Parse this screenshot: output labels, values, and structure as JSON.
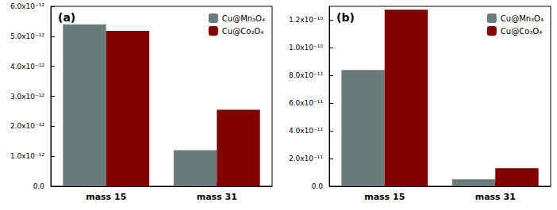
{
  "chart_data": [
    {
      "type": "bar",
      "title": "(a)",
      "categories": [
        "mass 15",
        "mass 31"
      ],
      "series": [
        {
          "name": "Cu@Mn₃O₄",
          "color": "#6b7b7b",
          "values": [
            5.4e-12,
            1.2e-12
          ]
        },
        {
          "name": "Cu@Co₃O₄",
          "color": "#800000",
          "values": [
            5.18e-12,
            2.55e-12
          ]
        }
      ],
      "ylim": [
        0,
        6e-12
      ],
      "yticks": [
        {
          "value": 0,
          "label": "0.0"
        },
        {
          "value": 1e-12,
          "label": "1.0x10⁻¹²"
        },
        {
          "value": 2e-12,
          "label": "2.0x10⁻¹²"
        },
        {
          "value": 3e-12,
          "label": "3.0x10⁻¹²"
        },
        {
          "value": 4e-12,
          "label": "4.0x10⁻¹²"
        },
        {
          "value": 5e-12,
          "label": "5.0x10⁻¹²"
        },
        {
          "value": 6e-12,
          "label": "6.0x10⁻¹²"
        }
      ],
      "legend": "top-right",
      "grid": false
    },
    {
      "type": "bar",
      "title": "(b)",
      "categories": [
        "mass 15",
        "mass 31"
      ],
      "series": [
        {
          "name": "Cu@Mn₃O₄",
          "color": "#6b7b7b",
          "values": [
            8.4e-11,
            5e-12
          ]
        },
        {
          "name": "Cu@Co₃O₄",
          "color": "#800000",
          "values": [
            1.275e-10,
            1.3e-11
          ]
        }
      ],
      "ylim": [
        0,
        1.3e-10
      ],
      "yticks": [
        {
          "value": 0,
          "label": "0.0"
        },
        {
          "value": 2e-11,
          "label": "2.0x10⁻¹¹"
        },
        {
          "value": 4e-11,
          "label": "4.0x10⁻¹¹"
        },
        {
          "value": 6e-11,
          "label": "6.0x10⁻¹¹"
        },
        {
          "value": 8e-11,
          "label": "8.0x10⁻¹¹"
        },
        {
          "value": 1e-10,
          "label": "1.0x10⁻¹⁰"
        },
        {
          "value": 1.2e-10,
          "label": "1.2x10⁻¹⁰"
        }
      ],
      "legend": "top-right",
      "grid": false
    }
  ]
}
